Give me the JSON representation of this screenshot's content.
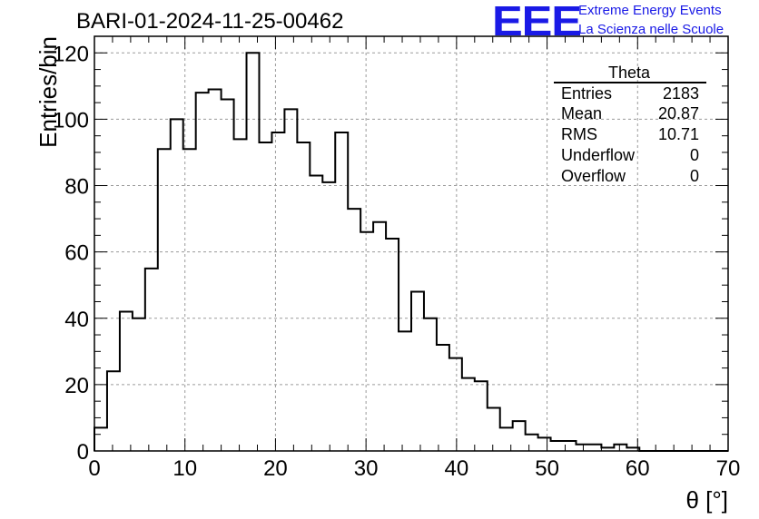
{
  "header": {
    "run_title": "BARI-01-2024-11-25-00462",
    "logo_text": "EEE",
    "logo_line1": "Extreme Energy Events",
    "logo_line2": "La Scienza nelle Scuole",
    "logo_color": "#1a1ae6"
  },
  "stats": {
    "title": "Theta",
    "rows": [
      {
        "label": "Entries",
        "value": "2183"
      },
      {
        "label": "Mean",
        "value": "20.87"
      },
      {
        "label": "RMS",
        "value": "10.71"
      },
      {
        "label": "Underflow",
        "value": "0"
      },
      {
        "label": "Overflow",
        "value": "0"
      }
    ]
  },
  "chart_data": {
    "type": "histogram",
    "title": "BARI-01-2024-11-25-00462",
    "xlabel": "θ [°]",
    "ylabel": "Entries/bin",
    "xlim": [
      0,
      70
    ],
    "ylim": [
      0,
      125
    ],
    "xticks": [
      0,
      10,
      20,
      30,
      40,
      50,
      60,
      70
    ],
    "yticks": [
      0,
      20,
      40,
      60,
      80,
      100,
      120
    ],
    "grid": true,
    "line_color": "#000000",
    "bin_width": 1.4,
    "values": [
      7,
      24,
      42,
      40,
      55,
      91,
      100,
      91,
      108,
      109,
      106,
      94,
      120,
      93,
      96,
      103,
      93,
      83,
      81,
      96,
      73,
      66,
      69,
      64,
      36,
      48,
      40,
      32,
      28,
      22,
      21,
      13,
      7,
      9,
      5,
      4,
      3,
      3,
      2,
      2,
      1,
      2,
      1,
      0,
      0,
      0,
      0,
      0,
      0,
      0
    ]
  }
}
